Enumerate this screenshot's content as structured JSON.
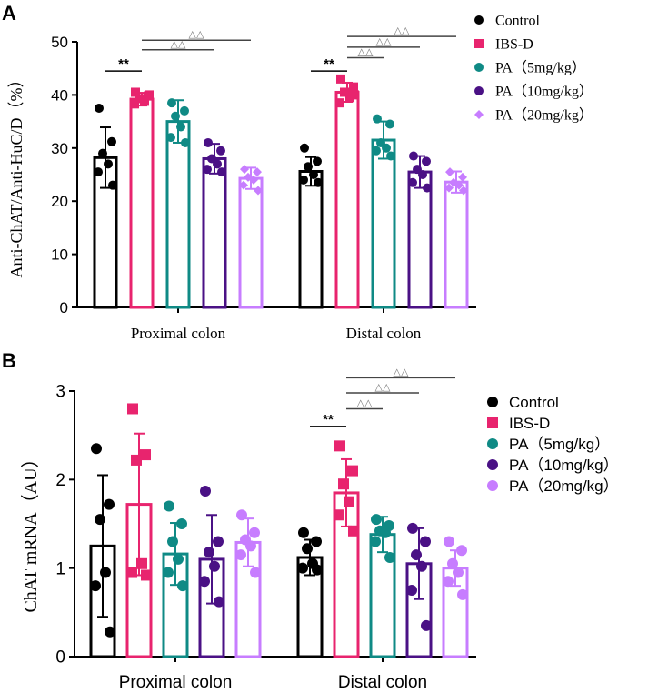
{
  "chart_data": [
    {
      "type": "bar",
      "panel": "A",
      "ylabel": "Anti-ChAT/Anti-HuC/D（%）",
      "ylim": [
        0,
        50
      ],
      "yticks": [
        "0",
        "10",
        "20",
        "30",
        "40",
        "50"
      ],
      "categories": [
        "Proximal colon",
        "Distal colon"
      ],
      "legend": [
        "Control",
        "IBS-D",
        "PA（5mg/kg）",
        "PA（10mg/kg）",
        "PA（20mg/kg）"
      ],
      "series": [
        {
          "name": "Control",
          "color": "#000000",
          "marker": "circle",
          "means": [
            28.2,
            25.6
          ],
          "sd": [
            5.7,
            2.7
          ],
          "points": [
            [
              37.5,
              31.2,
              29.0,
              27.0,
              25.5,
              23.0
            ],
            [
              30.0,
              27.5,
              26.5,
              25.0,
              24.0,
              23.5
            ]
          ]
        },
        {
          "name": "IBS-D",
          "color": "#e8246e",
          "marker": "square",
          "means": [
            39.2,
            40.5
          ],
          "sd": [
            1.2,
            1.8
          ],
          "points": [
            [
              40.5,
              39.8,
              39.3,
              38.8,
              38.3,
              40.0
            ],
            [
              43.0,
              41.5,
              40.5,
              39.5,
              38.5,
              40.0
            ]
          ]
        },
        {
          "name": "PA（5mg/kg）",
          "color": "#0f8a85",
          "marker": "circle",
          "means": [
            35.0,
            31.5
          ],
          "sd": [
            4.0,
            3.5
          ],
          "points": [
            [
              38.5,
              37.0,
              36.0,
              34.0,
              32.0,
              31.0
            ],
            [
              35.5,
              34.5,
              31.0,
              30.0,
              29.5,
              28.5
            ]
          ]
        },
        {
          "name": "PA（10mg/kg）",
          "color": "#4a1185",
          "marker": "circle",
          "means": [
            28.0,
            25.5
          ],
          "sd": [
            2.8,
            3.0
          ],
          "points": [
            [
              31.0,
              29.5,
              28.0,
              27.0,
              26.0,
              25.5
            ],
            [
              28.5,
              27.5,
              26.0,
              25.0,
              23.5,
              22.5
            ]
          ]
        },
        {
          "name": "PA（20mg/kg）",
          "color": "#c77dff",
          "marker": "diamond",
          "means": [
            24.3,
            23.6
          ],
          "sd": [
            2.0,
            2.0
          ],
          "points": [
            [
              26.0,
              25.5,
              24.5,
              24.0,
              23.0,
              22.0
            ],
            [
              25.5,
              24.5,
              23.5,
              23.0,
              22.5,
              22.0
            ]
          ]
        }
      ],
      "annotations": [
        {
          "text": "**",
          "group": 0,
          "from": 0,
          "to": 1,
          "y": 44.5
        },
        {
          "text": "△△",
          "group": 0,
          "from": 1,
          "to": 3,
          "y": 48.5
        },
        {
          "text": "△△",
          "group": 0,
          "from": 1,
          "to": 4,
          "y": 50.3
        },
        {
          "text": "**",
          "group": 1,
          "from": 0,
          "to": 1,
          "y": 44.5
        },
        {
          "text": "△△",
          "group": 1,
          "from": 1,
          "to": 2,
          "y": 47.0
        },
        {
          "text": "△△",
          "group": 1,
          "from": 1,
          "to": 3,
          "y": 49.0
        },
        {
          "text": "△△",
          "group": 1,
          "from": 1,
          "to": 4,
          "y": 51.0
        }
      ]
    },
    {
      "type": "bar",
      "panel": "B",
      "ylabel": "ChAT mRNA（AU）",
      "ylim": [
        0,
        3
      ],
      "yticks": [
        "0",
        "1",
        "2",
        "3"
      ],
      "categories": [
        "Proximal colon",
        "Distal colon"
      ],
      "legend": [
        "Control",
        "IBS-D",
        "PA（5mg/kg）",
        "PA（10mg/kg）",
        "PA（20mg/kg）"
      ],
      "series": [
        {
          "name": "Control",
          "color": "#000000",
          "marker": "circle",
          "means": [
            1.25,
            1.12
          ],
          "sd": [
            0.8,
            0.2
          ],
          "points": [
            [
              2.35,
              1.72,
              1.55,
              0.95,
              0.8,
              0.28
            ],
            [
              1.4,
              1.3,
              1.22,
              1.05,
              1.0,
              0.98
            ]
          ]
        },
        {
          "name": "IBS-D",
          "color": "#e8246e",
          "marker": "square",
          "means": [
            1.72,
            1.85
          ],
          "sd": [
            0.8,
            0.38
          ],
          "points": [
            [
              2.8,
              2.28,
              2.22,
              1.05,
              0.95,
              0.92
            ],
            [
              2.38,
              2.1,
              1.95,
              1.75,
              1.6,
              1.42
            ]
          ]
        },
        {
          "name": "PA（5mg/kg）",
          "color": "#0f8a85",
          "marker": "circle",
          "means": [
            1.16,
            1.38
          ],
          "sd": [
            0.35,
            0.2
          ],
          "points": [
            [
              1.7,
              1.5,
              1.3,
              1.1,
              0.95,
              0.8
            ],
            [
              1.55,
              1.48,
              1.42,
              1.4,
              1.3,
              1.12
            ]
          ]
        },
        {
          "name": "PA（10mg/kg）",
          "color": "#4a1185",
          "marker": "circle",
          "means": [
            1.1,
            1.05
          ],
          "sd": [
            0.5,
            0.4
          ],
          "points": [
            [
              1.87,
              1.3,
              1.18,
              1.02,
              0.85,
              0.62
            ],
            [
              1.45,
              1.3,
              1.15,
              1.02,
              0.75,
              0.35
            ]
          ]
        },
        {
          "name": "PA（20mg/kg）",
          "color": "#c77dff",
          "marker": "circle",
          "means": [
            1.29,
            1.0
          ],
          "sd": [
            0.27,
            0.2
          ],
          "points": [
            [
              1.6,
              1.4,
              1.32,
              1.25,
              1.15,
              0.95
            ],
            [
              1.3,
              1.2,
              1.05,
              0.95,
              0.85,
              0.7
            ]
          ]
        }
      ],
      "annotations": [
        {
          "text": "**",
          "group": 1,
          "from": 0,
          "to": 1,
          "y": 2.6
        },
        {
          "text": "△△",
          "group": 1,
          "from": 1,
          "to": 2,
          "y": 2.8
        },
        {
          "text": "△△",
          "group": 1,
          "from": 1,
          "to": 3,
          "y": 2.98
        },
        {
          "text": "△△",
          "group": 1,
          "from": 1,
          "to": 4,
          "y": 3.15
        }
      ]
    }
  ]
}
